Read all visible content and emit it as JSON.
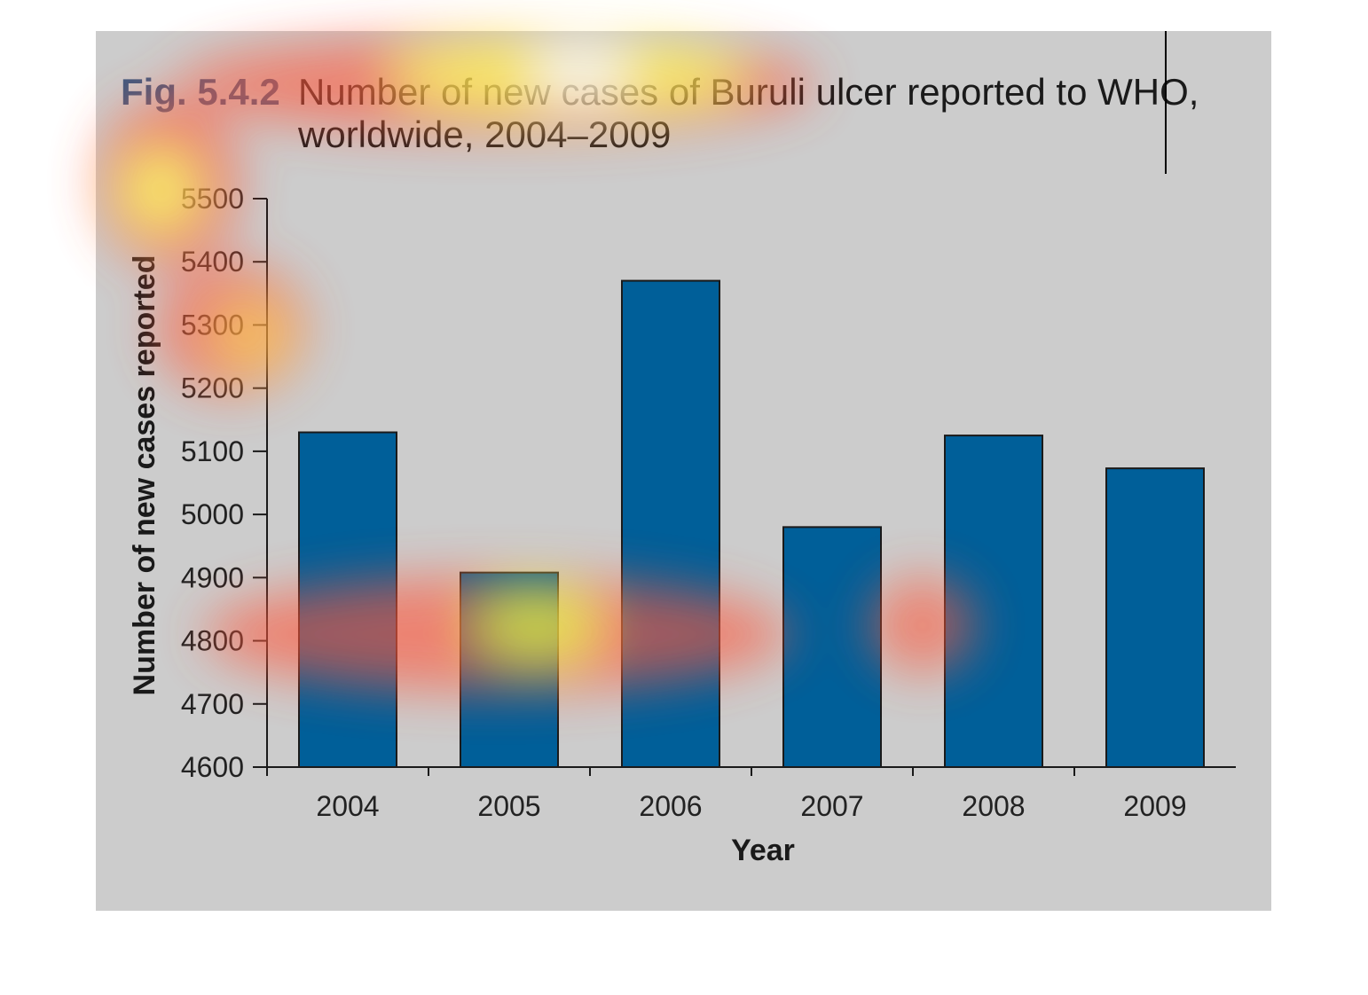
{
  "figure": {
    "label": "Fig. 5.4.2",
    "title_line1": "Number of new cases of Buruli ulcer reported to WHO,",
    "title_line2": "worldwide, 2004–2009"
  },
  "colors": {
    "panel_bg": "#cccccc",
    "bar_fill": "#005f99",
    "bar_stroke": "#1a1a1a",
    "label_color": "#3d5a80",
    "text_color": "#1a1a1a"
  },
  "chart_data": {
    "type": "bar",
    "title": "Number of new cases of Buruli ulcer reported to WHO, worldwide, 2004–2009",
    "categories": [
      "2004",
      "2005",
      "2006",
      "2007",
      "2008",
      "2009"
    ],
    "values": [
      5130,
      4908,
      5370,
      4980,
      5125,
      5073
    ],
    "xlabel": "Year",
    "ylabel": "Number of new cases reported",
    "ylim": [
      4600,
      5500
    ],
    "yticks": [
      4600,
      4700,
      4800,
      4900,
      5000,
      5100,
      5200,
      5300,
      5400,
      5500
    ],
    "grid": false,
    "legend": "none"
  }
}
